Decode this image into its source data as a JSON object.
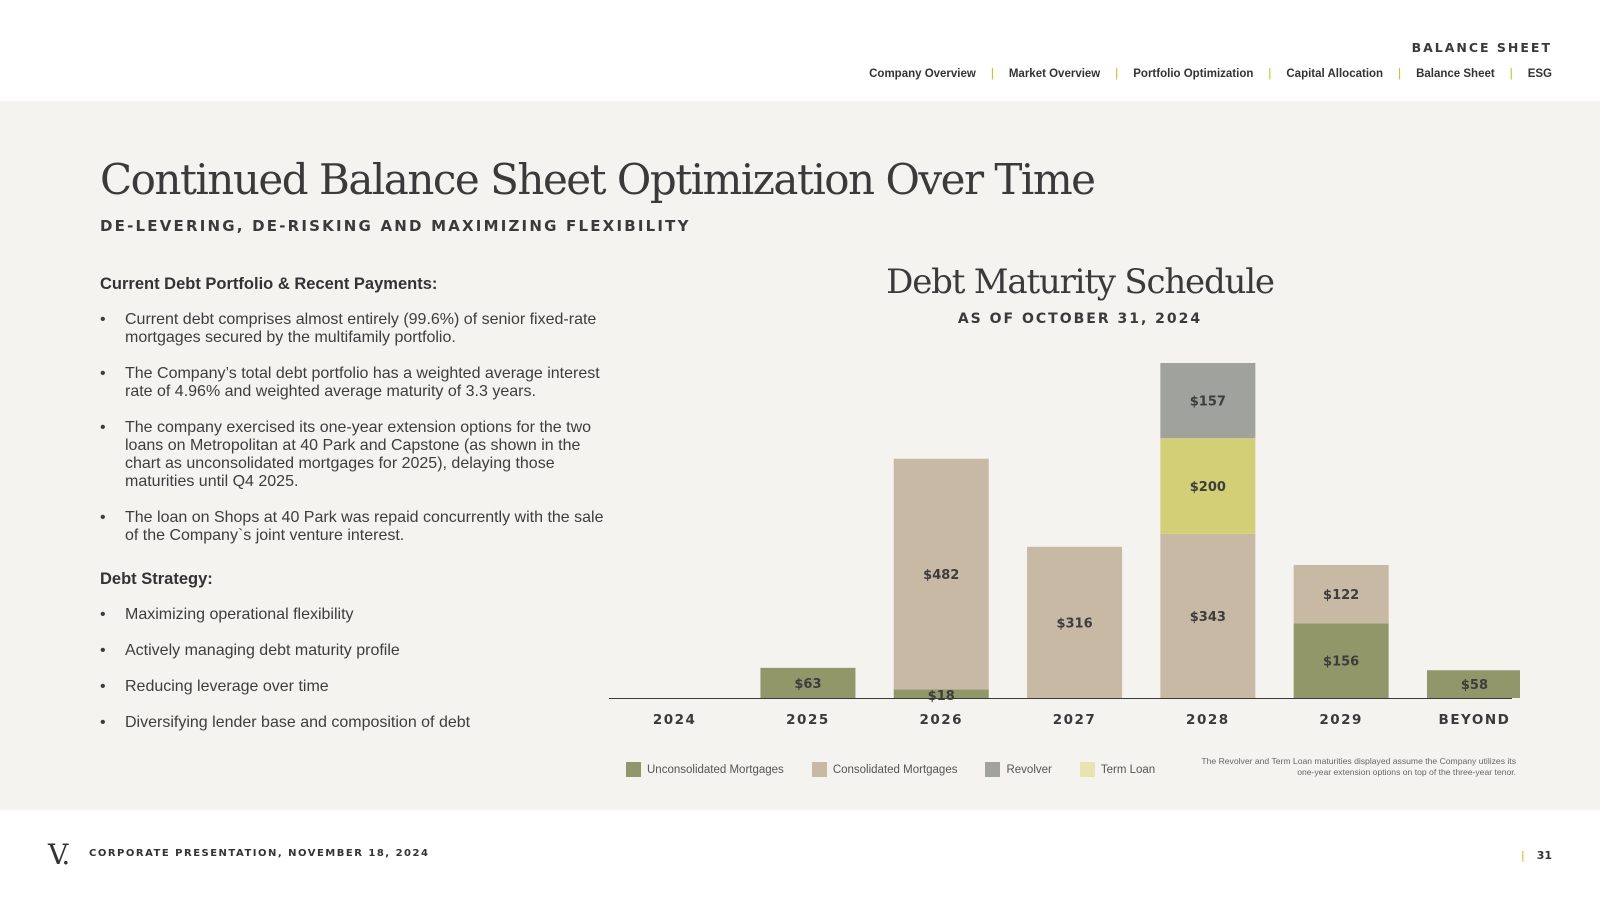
{
  "header": {
    "section": "BALANCE SHEET",
    "nav": [
      "Company Overview",
      "Market Overview",
      "Portfolio Optimization",
      "Capital Allocation",
      "Balance Sheet",
      "ESG"
    ]
  },
  "title": "Continued Balance Sheet Optimization Over Time",
  "subtitle": "DE-LEVERING, DE-RISKING AND MAXIMIZING FLEXIBILITY",
  "current_debt": {
    "heading": "Current Debt Portfolio & Recent Payments:",
    "bullets": [
      "Current debt comprises almost entirely (99.6%) of senior fixed-rate mortgages secured by the multifamily portfolio.",
      "The Company’s total debt portfolio has a weighted average interest rate of 4.96% and weighted average maturity of 3.3 years.",
      "The company exercised its one-year extension options for the two loans on Metropolitan at 40 Park and Capstone (as shown in the chart as unconsolidated mortgages for 2025), delaying those maturities until Q4 2025.",
      "The loan on Shops at 40 Park was repaid concurrently with the sale of the Company`s joint venture interest."
    ]
  },
  "debt_strategy": {
    "heading": "Debt Strategy:",
    "bullets": [
      "Maximizing operational flexibility",
      "Actively managing debt maturity profile",
      "Reducing leverage over time",
      "Diversifying lender base and composition of debt"
    ]
  },
  "chart_title": "Debt Maturity Schedule",
  "chart_subtitle": "AS OF OCTOBER 31, 2024",
  "chart_data": {
    "type": "bar",
    "stacked": true,
    "categories": [
      "2024",
      "2025",
      "2026",
      "2027",
      "2028",
      "2029",
      "BEYOND"
    ],
    "series": [
      {
        "name": "Unconsolidated Mortgages",
        "color": "#919769",
        "values": [
          0,
          63,
          18,
          0,
          0,
          156,
          58
        ]
      },
      {
        "name": "Consolidated Mortgages",
        "color": "#c8b9a5",
        "values": [
          0,
          0,
          482,
          316,
          343,
          122,
          0
        ]
      },
      {
        "name": "Revolver",
        "color": "#a0a29d",
        "values": [
          0,
          0,
          0,
          0,
          157,
          0,
          0
        ]
      },
      {
        "name": "Term Loan",
        "color": "#d3cf77",
        "values": [
          0,
          0,
          0,
          0,
          200,
          0,
          0
        ]
      }
    ],
    "stack_order": [
      "Unconsolidated Mortgages",
      "Consolidated Mortgages",
      "Term Loan",
      "Revolver"
    ],
    "labels": {
      "Unconsolidated Mortgages": [
        "",
        "$63",
        "$18",
        "",
        "",
        "$156",
        "$58"
      ],
      "Consolidated Mortgages": [
        "",
        "",
        "$482",
        "$316",
        "$343",
        "$122",
        ""
      ],
      "Revolver": [
        "",
        "",
        "",
        "",
        "$157",
        "",
        ""
      ],
      "Term Loan": [
        "",
        "",
        "",
        "",
        "$200",
        "",
        ""
      ]
    },
    "ylim": [
      0,
      700
    ],
    "legend_position": "bottom-left",
    "note": "The Revolver and Term Loan maturities displayed assume the Company utilizes its one-year extension options on top of the three-year tenor."
  },
  "legend": [
    {
      "label": "Unconsolidated Mortgages",
      "color": "#919769"
    },
    {
      "label": "Consolidated Mortgages",
      "color": "#c8b9a5"
    },
    {
      "label": "Revolver",
      "color": "#a0a29d"
    },
    {
      "label": "Term Loan",
      "color": "#e8e4b0"
    }
  ],
  "footer": {
    "logo": "V.",
    "text": "CORPORATE PRESENTATION, NOVEMBER 18, 2024",
    "page": "31"
  }
}
